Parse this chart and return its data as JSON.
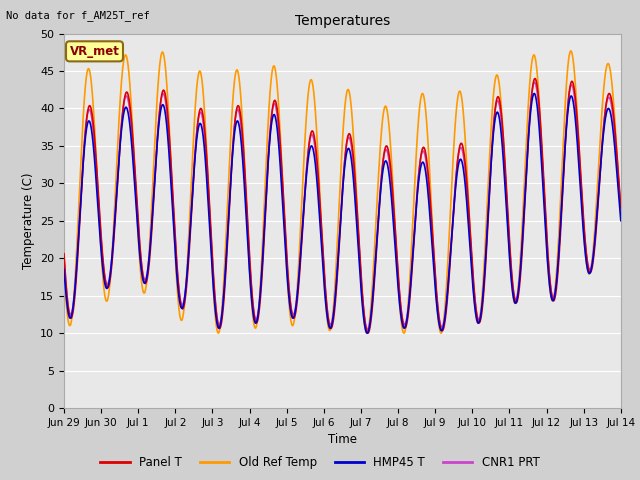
{
  "title": "Temperatures",
  "ylabel": "Temperature (C)",
  "xlabel": "Time",
  "ylim": [
    0,
    50
  ],
  "fig_bg_color": "#d0d0d0",
  "plot_bg_color": "#e8e8e8",
  "no_data_text": "No data for f_AM25T_ref",
  "vr_met_text": "VR_met",
  "series": {
    "Panel T": {
      "color": "#dd0000",
      "lw": 1.2
    },
    "Old Ref Temp": {
      "color": "#ff9900",
      "lw": 1.2
    },
    "HMP45 T": {
      "color": "#0000cc",
      "lw": 1.2
    },
    "CNR1 PRT": {
      "color": "#cc44cc",
      "lw": 1.2
    }
  },
  "xtick_labels": [
    "Jun 29",
    "Jun 30",
    "Jul 1",
    "Jul 2",
    "Jul 3",
    "Jul 4",
    "Jul 5",
    "Jul 6",
    "Jul 7",
    "Jul 8",
    "Jul 9",
    "Jul 10",
    "Jul 11",
    "Jul 12",
    "Jul 13",
    "Jul 14"
  ],
  "n_days": 15,
  "samples_per_day": 288,
  "peak_ref": [
    38,
    40,
    41,
    38,
    38,
    40,
    35,
    35,
    33,
    33,
    32,
    39,
    42,
    42,
    40
  ],
  "peak_old": [
    45,
    47,
    48,
    45,
    45,
    46,
    44,
    43,
    40,
    42,
    42,
    44,
    47,
    48,
    46
  ],
  "min_ref": [
    12,
    18,
    16,
    12,
    10,
    12,
    12,
    10,
    10,
    11,
    10,
    12,
    15,
    14,
    20
  ],
  "min_old": [
    11,
    16,
    15,
    10,
    10,
    11,
    11,
    10,
    10,
    10,
    10,
    12,
    15,
    14,
    20
  ]
}
